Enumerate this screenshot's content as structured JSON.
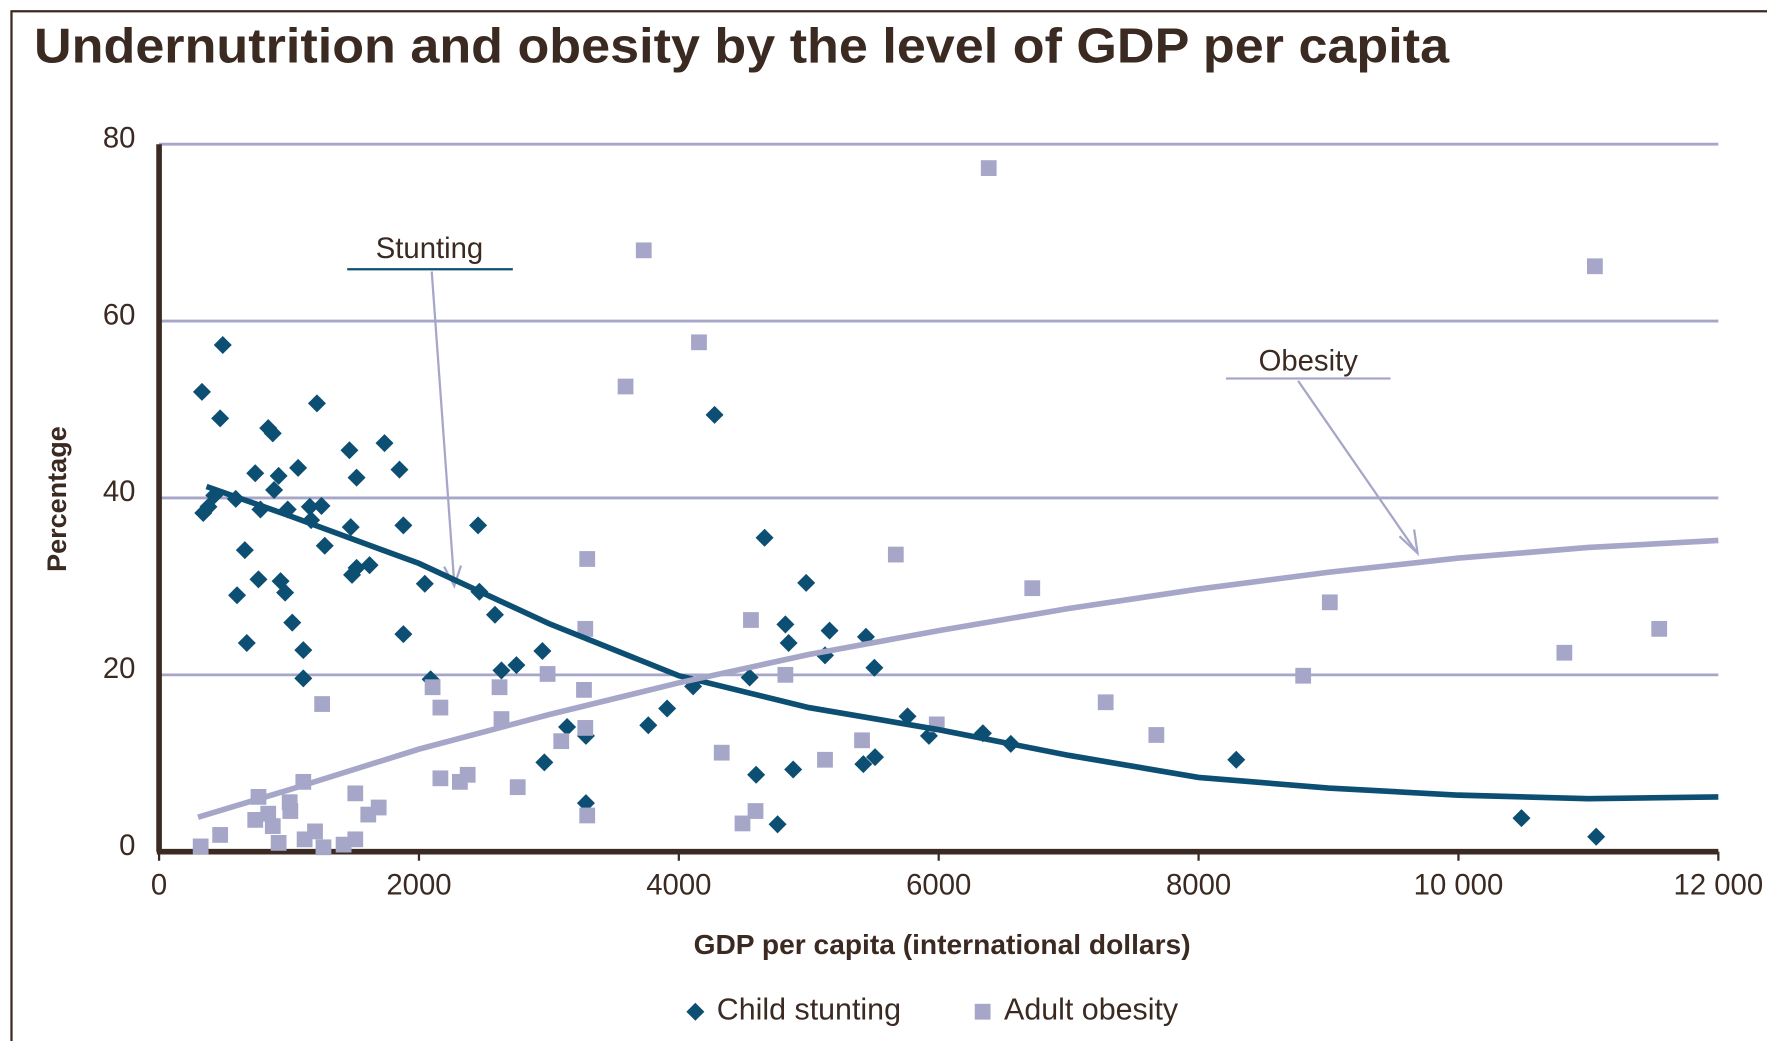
{
  "chart_data": {
    "type": "scatter",
    "title": "Undernutrition and obesity by the level of GDP per capita",
    "xlabel": "GDP per capita (international dollars)",
    "ylabel": "Percentage",
    "xlim": [
      0,
      12000
    ],
    "ylim": [
      0,
      80
    ],
    "xticks": [
      0,
      2000,
      4000,
      6000,
      8000,
      {
        "value": 10000,
        "label": "10 000"
      },
      {
        "value": 12000,
        "label": "12 000"
      }
    ],
    "yticks": [
      0,
      20,
      40,
      60,
      80
    ],
    "grid": true,
    "annotations": [
      "Stunting",
      "Obesity"
    ],
    "series": [
      {
        "name": "Child stunting",
        "color": "#0d4f73",
        "marker": "diamond",
        "x": [
          330,
          490,
          470,
          340,
          380,
          425,
          590,
          840,
          875,
          740,
          920,
          1070,
          1215,
          885,
          780,
          990,
          1160,
          1250,
          1170,
          1275,
          660,
          600,
          765,
          935,
          970,
          1025,
          675,
          1110,
          1110,
          1465,
          1520,
          1735,
          1850,
          1475,
          1485,
          1520,
          1620,
          1880,
          1880,
          2045,
          2090,
          2455,
          2465,
          2585,
          2635,
          2750,
          2950,
          2965,
          3140,
          3285,
          3285,
          3765,
          3910,
          4110,
          4275,
          4545,
          4660,
          4820,
          4845,
          4595,
          4760,
          4880,
          4980,
          5160,
          5125,
          5440,
          5505,
          5420,
          5510,
          5760,
          5925,
          6340,
          6555,
          8290,
          10485,
          11060
        ],
        "values": [
          52,
          57.3,
          49,
          38.3,
          39,
          40.3,
          39.9,
          47.9,
          47.3,
          42.8,
          42.5,
          43.4,
          50.7,
          40.9,
          38.7,
          38.7,
          39,
          39.1,
          37.5,
          34.6,
          34.1,
          29,
          30.8,
          30.6,
          29.3,
          25.9,
          23.6,
          22.8,
          19.6,
          45.4,
          42.3,
          46.2,
          43.2,
          36.7,
          31.3,
          32.1,
          32.4,
          36.9,
          24.6,
          30.3,
          19.5,
          36.9,
          29.4,
          26.8,
          20.5,
          21.1,
          22.7,
          10.1,
          14.1,
          13.1,
          5.5,
          14.3,
          16.2,
          18.7,
          49.4,
          19.7,
          35.5,
          25.7,
          23.6,
          8.7,
          3.1,
          9.3,
          30.4,
          25,
          22.2,
          24.3,
          20.8,
          9.9,
          10.7,
          15.3,
          13.1,
          13.4,
          12.2,
          10.4,
          3.8,
          1.7
        ]
      },
      {
        "name": "Adult obesity",
        "color": "#a6a6c9",
        "marker": "square",
        "x": [
          320,
          470,
          765,
          740,
          840,
          875,
          920,
          1005,
          1010,
          1110,
          1120,
          1200,
          1265,
          1255,
          1420,
          1510,
          1510,
          1610,
          1690,
          2105,
          2165,
          2165,
          2315,
          2375,
          2620,
          2635,
          2760,
          2990,
          3095,
          3280,
          3295,
          3270,
          3280,
          3295,
          3590,
          3730,
          4155,
          4330,
          4490,
          4590,
          4555,
          4820,
          5125,
          5410,
          5670,
          5985,
          6385,
          6720,
          7285,
          7675,
          8805,
          9010,
          10815,
          11050,
          11545
        ],
        "values": [
          0.6,
          1.9,
          6.2,
          3.6,
          4.3,
          2.9,
          1,
          5.6,
          4.6,
          7.9,
          1.4,
          2.3,
          0.5,
          16.7,
          0.8,
          1.4,
          6.6,
          4.2,
          5,
          18.6,
          16.3,
          8.3,
          7.9,
          8.7,
          18.6,
          15,
          7.3,
          20.1,
          12.5,
          25.2,
          33.1,
          18.3,
          14,
          4.1,
          52.6,
          68,
          57.6,
          11.2,
          3.2,
          4.6,
          26.2,
          20,
          10.4,
          12.6,
          33.6,
          14.4,
          77.3,
          29.8,
          16.9,
          13.2,
          19.9,
          28.2,
          22.5,
          66.2,
          25.2
        ]
      }
    ],
    "trends": [
      {
        "color": "#0d4f73",
        "x": [
          365,
          1000,
          2000,
          3000,
          4000,
          5000,
          6000,
          7000,
          8000,
          9000,
          10000,
          11000,
          12000
        ],
        "values": [
          41.3,
          38,
          32.6,
          25.8,
          19.9,
          16.3,
          13.8,
          10.9,
          8.4,
          7.2,
          6.4,
          6,
          6.2
        ]
      },
      {
        "color": "#a6a6c9",
        "x": [
          300,
          1000,
          2000,
          3000,
          4000,
          5000,
          6000,
          7000,
          8000,
          9000,
          10000,
          11000,
          12000
        ],
        "values": [
          3.9,
          7,
          11.6,
          15.5,
          19.1,
          22.3,
          25,
          27.5,
          29.7,
          31.6,
          33.2,
          34.4,
          35.2
        ]
      }
    ]
  }
}
